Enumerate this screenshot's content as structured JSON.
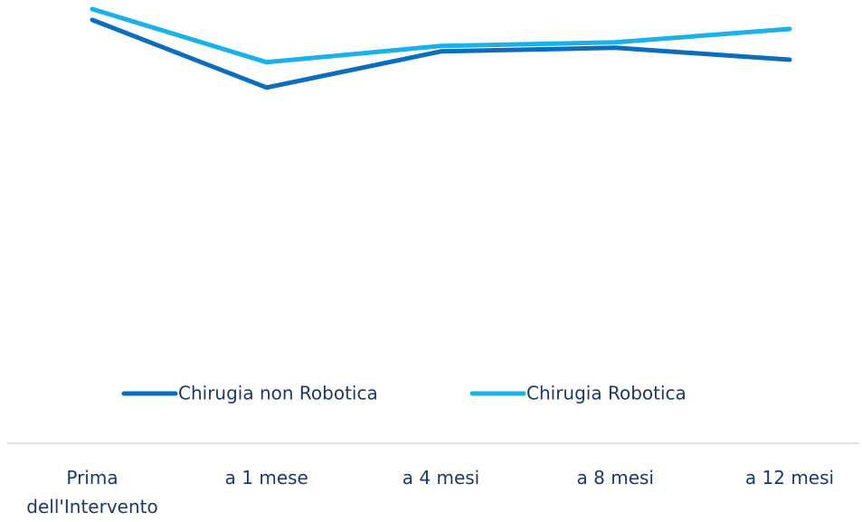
{
  "chart_data": {
    "type": "line",
    "categories": [
      "Prima dell'Intervento",
      "a 1 mese",
      "a 4 mesi",
      "a 8 mesi",
      "a 12 mesi"
    ],
    "series": [
      {
        "name": "Chirugia non Robotica",
        "color": "#0a6ebd",
        "values": [
          94.5,
          75.8,
          85.8,
          86.8,
          83.5
        ]
      },
      {
        "name": "Chirugia Robotica",
        "color": "#1ab0e8",
        "values": [
          97.5,
          82.8,
          87.3,
          88.3,
          92
        ]
      }
    ],
    "ylim": [
      0,
      100
    ],
    "legend": "bottom"
  }
}
